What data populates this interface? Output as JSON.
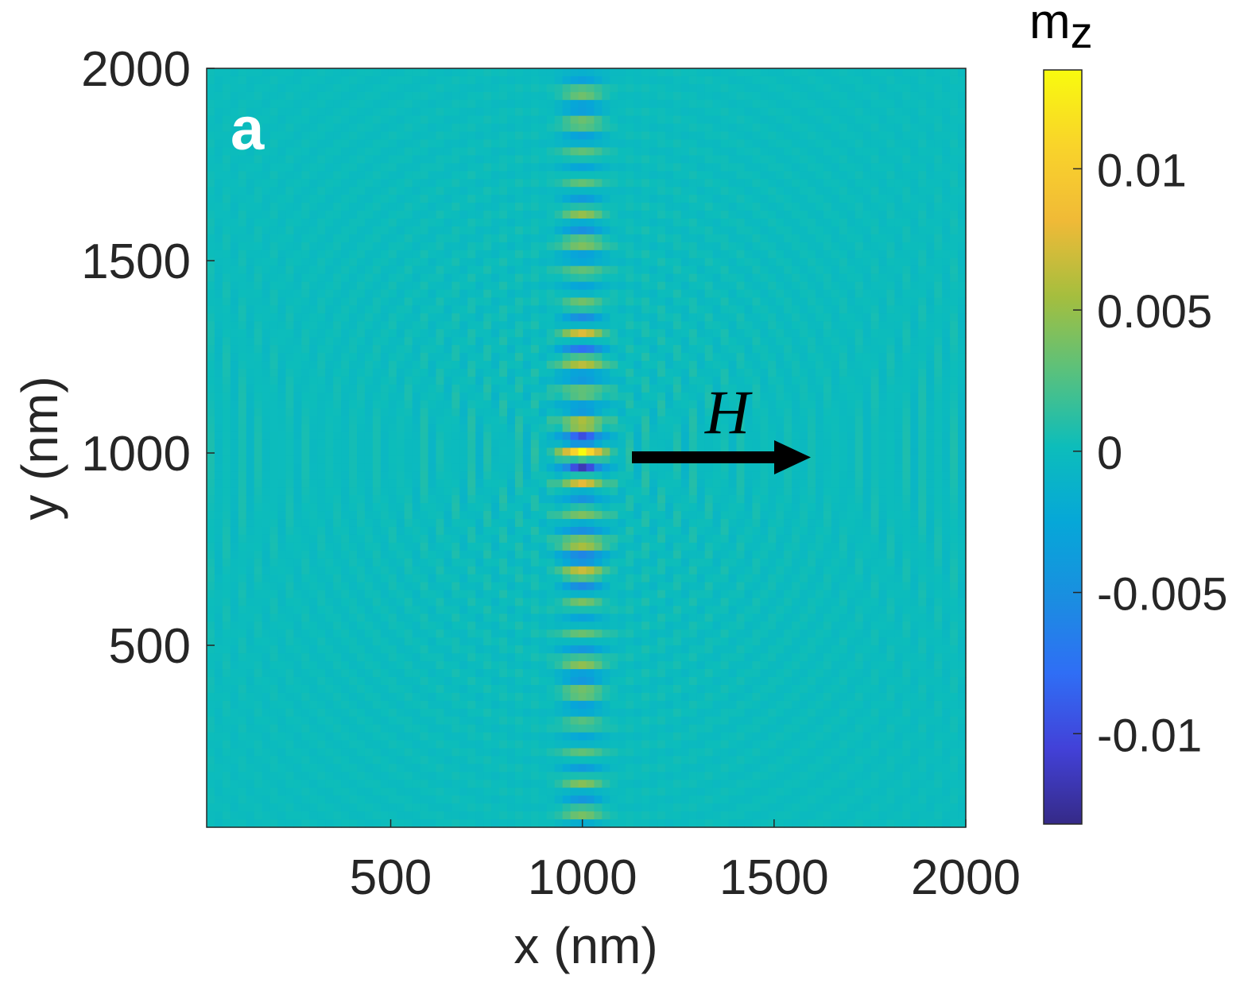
{
  "chart_data": {
    "type": "heatmap",
    "panel_label": "a",
    "xlabel": "x (nm)",
    "ylabel": "y (nm)",
    "xlim": [
      20,
      2000
    ],
    "ylim": [
      27,
      2000
    ],
    "xticks": [
      500,
      1000,
      1500,
      2000
    ],
    "xtick_labels": [
      "500",
      "1000",
      "1500",
      "2000"
    ],
    "yticks": [
      500,
      1000,
      1500,
      2000
    ],
    "ytick_labels": [
      "500",
      "1000",
      "1500",
      "2000"
    ],
    "grid": false,
    "colormap": "parula",
    "colorbar": {
      "title_main": "m",
      "title_sub": "z",
      "clim": [
        -0.0132,
        0.0135
      ],
      "ticks": [
        -0.01,
        -0.005,
        0,
        0.005,
        0.01
      ],
      "tick_labels": [
        "-0.01",
        "-0.005",
        "0",
        "0.005",
        "0.01"
      ],
      "location": "right"
    },
    "annotation": {
      "text": "H",
      "arrow_direction": "+x",
      "arrow_from": [
        1130,
        1000
      ],
      "arrow_to": [
        1610,
        1000
      ]
    },
    "field": {
      "center": [
        1000,
        1000
      ],
      "peak_max": 0.0135,
      "peak_min": -0.0132,
      "background": 0
    }
  }
}
